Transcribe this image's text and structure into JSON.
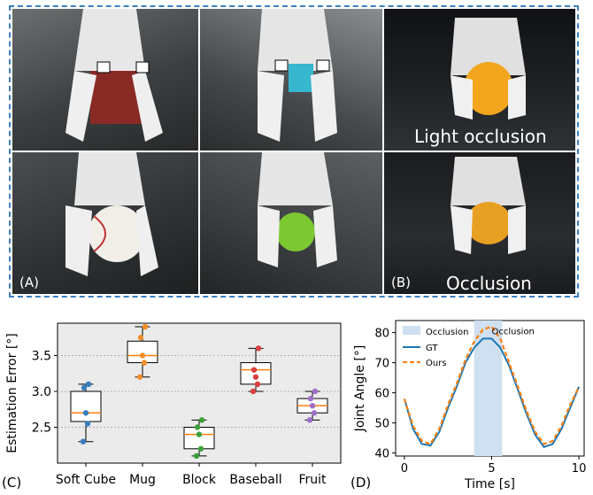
{
  "photos": {
    "label_a": "(A)",
    "label_b": "(B)",
    "caption_light": "Light occlusion",
    "caption_occlusion": "Occlusion"
  },
  "chart_data": [
    {
      "type": "box",
      "panel": "(C)",
      "ylabel": "Estimation Error [°]",
      "ylim": [
        2.0,
        3.95
      ],
      "yticks": [
        "2.5",
        "3.0",
        "3.5"
      ],
      "grid": true,
      "categories": [
        "Soft Cube",
        "Mug",
        "Block",
        "Baseball",
        "Fruit"
      ],
      "colors": [
        "#3a7dbf",
        "#f28e2b",
        "#3ca03c",
        "#d94040",
        "#a070c8"
      ],
      "boxes": [
        {
          "q1": 2.58,
          "median": 2.7,
          "q3": 3.0,
          "low": 2.3,
          "high": 3.1,
          "points": [
            2.3,
            2.55,
            2.7,
            3.05,
            3.1
          ]
        },
        {
          "q1": 3.4,
          "median": 3.5,
          "q3": 3.7,
          "low": 3.2,
          "high": 3.9,
          "points": [
            3.2,
            3.4,
            3.5,
            3.75,
            3.9
          ]
        },
        {
          "q1": 2.2,
          "median": 2.4,
          "q3": 2.5,
          "low": 2.1,
          "high": 2.6,
          "points": [
            2.1,
            2.2,
            2.4,
            2.5,
            2.6
          ]
        },
        {
          "q1": 3.1,
          "median": 3.3,
          "q3": 3.4,
          "low": 3.0,
          "high": 3.6,
          "points": [
            3.0,
            3.1,
            3.2,
            3.3,
            3.6
          ]
        },
        {
          "q1": 2.7,
          "median": 2.8,
          "q3": 2.9,
          "low": 2.6,
          "high": 3.0,
          "points": [
            2.6,
            2.7,
            2.8,
            2.9,
            3.0
          ]
        }
      ]
    },
    {
      "type": "line",
      "panel": "(D)",
      "xlabel": "Time [s]",
      "ylabel": "Joint Angle [°]",
      "xlim": [
        -0.5,
        10.3
      ],
      "ylim": [
        39,
        84
      ],
      "xticks": [
        "0",
        "5",
        "10"
      ],
      "yticks": [
        "40",
        "50",
        "60",
        "70",
        "80"
      ],
      "shaded_region": {
        "x0": 4.0,
        "x1": 5.6,
        "label": "Occlusion",
        "color": "#cfe0f0"
      },
      "annotation": "Occlusion",
      "legend": [
        "Occlusion",
        "GT",
        "Ours"
      ],
      "series": [
        {
          "name": "GT",
          "color": "#1f77b4",
          "style": "solid",
          "x": [
            0,
            0.5,
            1,
            1.5,
            2,
            2.5,
            3,
            3.5,
            4,
            4.5,
            5,
            5.5,
            6,
            6.5,
            7,
            7.5,
            8,
            8.5,
            9,
            9.5,
            10
          ],
          "y": [
            58,
            48,
            43,
            42.5,
            47,
            55,
            62,
            70,
            75,
            78,
            78,
            75,
            69,
            61,
            53,
            46,
            42,
            43,
            48,
            55,
            62
          ]
        },
        {
          "name": "Ours",
          "color": "#ff7f0e",
          "style": "dashed",
          "x": [
            0,
            0.5,
            1,
            1.5,
            2,
            2.5,
            3,
            3.5,
            4,
            4.5,
            5,
            5.5,
            6,
            6.5,
            7,
            7.5,
            8,
            8.5,
            9,
            9.5,
            10
          ],
          "y": [
            58,
            49,
            44,
            43,
            48,
            56,
            63,
            71,
            77,
            81,
            82,
            78,
            70,
            62,
            54,
            47,
            43,
            44,
            49,
            56,
            62
          ]
        }
      ]
    }
  ]
}
